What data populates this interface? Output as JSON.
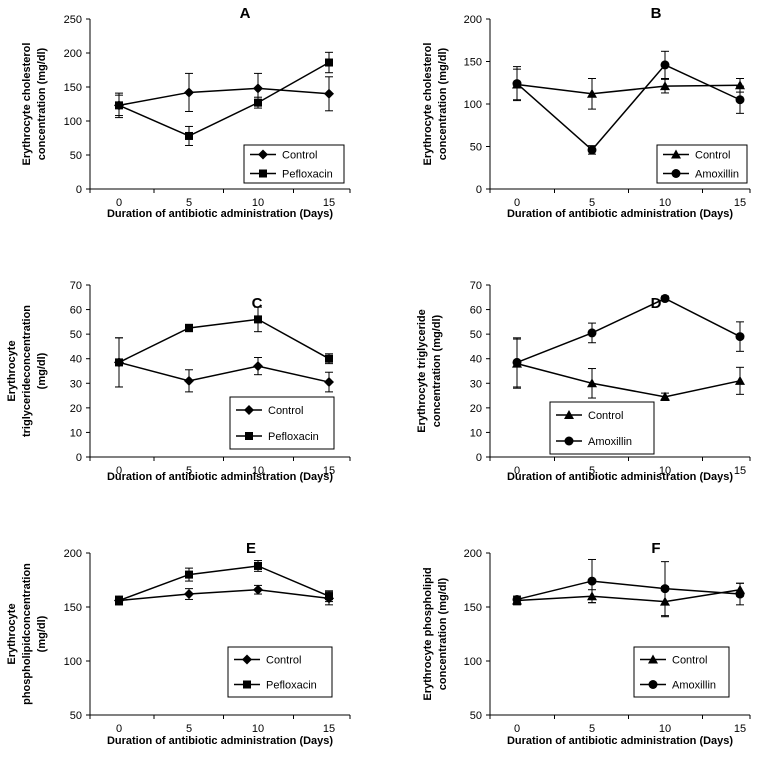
{
  "chart_data": [
    {
      "panel": "A",
      "type": "line",
      "ylabel": [
        "Erythrocyte cholesterol",
        "concentration (mg/dl)"
      ],
      "xlabel": "Duration of antibiotic administration (Days)",
      "ylim": [
        0,
        250
      ],
      "yticks": [
        0,
        50,
        100,
        150,
        200,
        250
      ],
      "categories": [
        "0",
        "5",
        "10",
        "15"
      ],
      "legend_position": "bottom-right",
      "series": [
        {
          "name": "Control",
          "marker": "diamond",
          "values": [
            123,
            142,
            148,
            140
          ],
          "errors": [
            15,
            28,
            22,
            25
          ]
        },
        {
          "name": "Pefloxacin",
          "marker": "square",
          "values": [
            123,
            78,
            127,
            186
          ],
          "errors": [
            18,
            14,
            8,
            15
          ]
        }
      ]
    },
    {
      "panel": "B",
      "type": "line",
      "ylabel": [
        "Erythrocyte cholesterol",
        "concentration (mg/dl)"
      ],
      "xlabel": "Duration of antibiotic administration (Days)",
      "ylim": [
        0,
        200
      ],
      "yticks": [
        0,
        50,
        100,
        150,
        200
      ],
      "categories": [
        "0",
        "5",
        "10",
        "15"
      ],
      "legend_position": "bottom-right",
      "series": [
        {
          "name": "Control",
          "marker": "triangle",
          "values": [
            123,
            112,
            121,
            122
          ],
          "errors": [
            18,
            18,
            8,
            8
          ]
        },
        {
          "name": "Amoxillin",
          "marker": "circle",
          "values": [
            124,
            46,
            146,
            105
          ],
          "errors": [
            20,
            5,
            16,
            16
          ]
        }
      ]
    },
    {
      "panel": "C",
      "type": "line",
      "ylabel": [
        "Erythrocyte",
        "triglycerideconcentration",
        "(mg/dl)"
      ],
      "xlabel": "Duration of antibiotic administration (Days)",
      "ylim": [
        0,
        70
      ],
      "yticks": [
        0,
        10,
        20,
        30,
        40,
        50,
        60,
        70
      ],
      "categories": [
        "0",
        "5",
        "10",
        "15"
      ],
      "legend_position": "bottom-right",
      "series": [
        {
          "name": "Control",
          "marker": "diamond",
          "values": [
            38.5,
            31,
            37,
            30.5
          ],
          "errors": [
            10,
            4.5,
            3.5,
            4
          ]
        },
        {
          "name": "Pefloxacin",
          "marker": "square",
          "values": [
            38.5,
            52.5,
            56,
            40
          ],
          "errors": [
            10,
            1.5,
            5,
            2
          ]
        }
      ]
    },
    {
      "panel": "D",
      "type": "line",
      "ylabel": [
        "Erythrocyte triglyceride",
        "concentration (mg/dl)"
      ],
      "xlabel": "Duration of antibiotic administration (Days)",
      "ylim": [
        0,
        70
      ],
      "yticks": [
        0,
        10,
        20,
        30,
        40,
        50,
        60,
        70
      ],
      "categories": [
        "0",
        "5",
        "10",
        "15"
      ],
      "legend_position": "bottom-left",
      "series": [
        {
          "name": "Control",
          "marker": "triangle",
          "values": [
            38,
            30,
            24.5,
            31
          ],
          "errors": [
            10,
            6,
            1.5,
            5.5
          ]
        },
        {
          "name": "Amoxillin",
          "marker": "circle",
          "values": [
            38.5,
            50.5,
            64.5,
            49
          ],
          "errors": [
            10,
            4,
            1,
            6
          ]
        }
      ]
    },
    {
      "panel": "E",
      "type": "line",
      "ylabel": [
        "Erythrocyte",
        "phospholipidconcentration",
        "(mg/dl)"
      ],
      "xlabel": "Duration of antibiotic administration (Days)",
      "ylim": [
        50,
        200
      ],
      "yticks": [
        50,
        100,
        150,
        200
      ],
      "categories": [
        "0",
        "5",
        "10",
        "15"
      ],
      "legend_position": "bottom-right",
      "series": [
        {
          "name": "Control",
          "marker": "diamond",
          "values": [
            156,
            162,
            166,
            158
          ],
          "errors": [
            4,
            5,
            4,
            6
          ]
        },
        {
          "name": "Pefloxacin",
          "marker": "square",
          "values": [
            156,
            180,
            188,
            160
          ],
          "errors": [
            4,
            6,
            5,
            5
          ]
        }
      ]
    },
    {
      "panel": "F",
      "type": "line",
      "ylabel": [
        "Erythrocyte phospholipid",
        "concentration (mg/dl)"
      ],
      "xlabel": "Duration of antibiotic administration (Days)",
      "ylim": [
        50,
        200
      ],
      "yticks": [
        50,
        100,
        150,
        200
      ],
      "categories": [
        "0",
        "5",
        "10",
        "15"
      ],
      "legend_position": "bottom-right",
      "series": [
        {
          "name": "Control",
          "marker": "triangle",
          "values": [
            156,
            160,
            155,
            166
          ],
          "errors": [
            4,
            6,
            14,
            6
          ]
        },
        {
          "name": "Amoxillin",
          "marker": "circle",
          "values": [
            157,
            174,
            167,
            162
          ],
          "errors": [
            3,
            20,
            25,
            10
          ]
        }
      ]
    }
  ]
}
